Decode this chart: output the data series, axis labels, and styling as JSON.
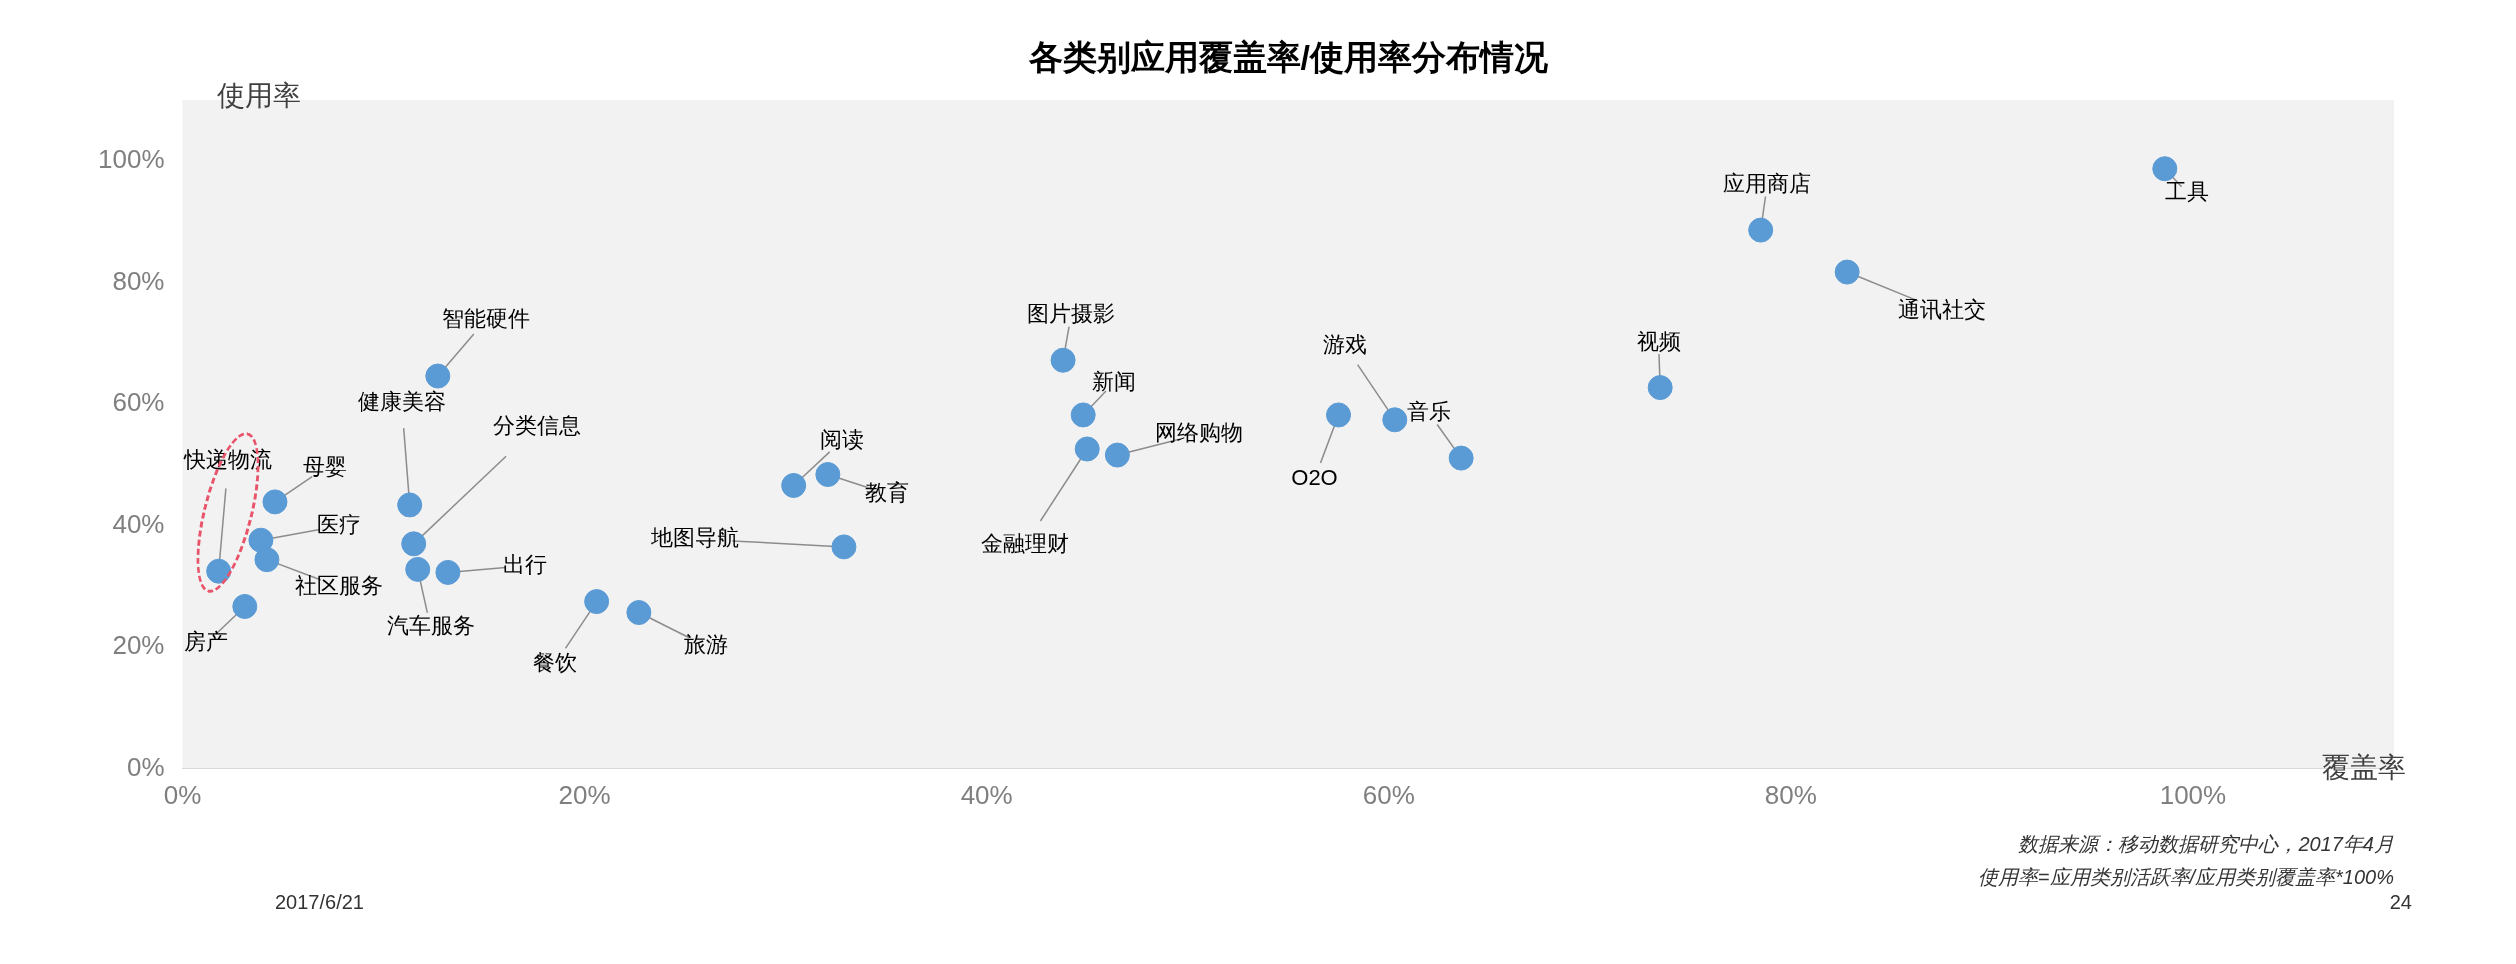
{
  "chart_data": {
    "type": "scatter",
    "title": "各类别应用覆盖率/使用率分布情况",
    "xlabel": "覆盖率",
    "ylabel": "使用率",
    "color": "#5b9bd5",
    "marker": "circle",
    "x": [
      98.6,
      78.5,
      82.8,
      73.5,
      63.6,
      60.3,
      57.5,
      43.8,
      44.8,
      45.0,
      46.5,
      30.4,
      32.1,
      32.9,
      20.6,
      22.7,
      12.7,
      11.3,
      11.5,
      11.7,
      13.2,
      4.6,
      3.9,
      4.2,
      1.8,
      3.1
    ],
    "values": [
      98.7,
      88.6,
      81.7,
      62.7,
      51.1,
      57.4,
      58.2,
      67.2,
      58.2,
      52.6,
      51.6,
      46.6,
      48.4,
      36.5,
      27.5,
      25.7,
      64.6,
      43.4,
      37.0,
      32.8,
      32.3,
      43.9,
      37.6,
      34.4,
      32.5,
      26.7
    ],
    "xlim": [
      0,
      110
    ],
    "ylim": [
      0,
      110
    ],
    "xticks": [
      {
        "value": 0,
        "label": "0%"
      },
      {
        "value": 20,
        "label": "20%"
      },
      {
        "value": 40,
        "label": "40%"
      },
      {
        "value": 60,
        "label": "60%"
      },
      {
        "value": 80,
        "label": "80%"
      },
      {
        "value": 100,
        "label": "100%"
      }
    ],
    "yticks": [
      {
        "value": 0,
        "label": "0%"
      },
      {
        "value": 20,
        "label": "20%"
      },
      {
        "value": 40,
        "label": "40%"
      },
      {
        "value": 60,
        "label": "60%"
      },
      {
        "value": 80,
        "label": "80%"
      },
      {
        "value": 100,
        "label": "100%"
      }
    ],
    "annotations": [
      {
        "text": "工具",
        "x": 98.6,
        "y": 98.7
      },
      {
        "text": "应用商店",
        "x": 78.5,
        "y": 88.6
      },
      {
        "text": "通讯社交",
        "x": 82.8,
        "y": 81.7
      },
      {
        "text": "视频",
        "x": 73.5,
        "y": 62.7
      },
      {
        "text": "音乐",
        "x": 63.6,
        "y": 51.1
      },
      {
        "text": "游戏",
        "x": 60.3,
        "y": 57.4
      },
      {
        "text": "O2O",
        "x": 57.5,
        "y": 58.2
      },
      {
        "text": "图片摄影",
        "x": 43.8,
        "y": 67.2
      },
      {
        "text": "新闻",
        "x": 44.8,
        "y": 58.2
      },
      {
        "text": "金融理财",
        "x": 45.0,
        "y": 52.6
      },
      {
        "text": "网络购物",
        "x": 46.5,
        "y": 51.6
      },
      {
        "text": "阅读",
        "x": 30.4,
        "y": 46.6
      },
      {
        "text": "教育",
        "x": 32.1,
        "y": 48.4
      },
      {
        "text": "地图导航",
        "x": 32.9,
        "y": 36.5
      },
      {
        "text": "餐饮",
        "x": 20.6,
        "y": 27.5
      },
      {
        "text": "旅游",
        "x": 22.7,
        "y": 25.7
      },
      {
        "text": "智能硬件",
        "x": 12.7,
        "y": 64.6
      },
      {
        "text": "健康美容",
        "x": 11.3,
        "y": 43.4
      },
      {
        "text": "分类信息",
        "x": 11.5,
        "y": 37.0
      },
      {
        "text": "汽车服务",
        "x": 11.7,
        "y": 32.8
      },
      {
        "text": "出行",
        "x": 13.2,
        "y": 32.3
      },
      {
        "text": "母婴",
        "x": 4.6,
        "y": 43.9
      },
      {
        "text": "医疗",
        "x": 3.9,
        "y": 37.6
      },
      {
        "text": "社区服务",
        "x": 4.2,
        "y": 34.4
      },
      {
        "text": "快递物流",
        "x": 1.8,
        "y": 32.5
      },
      {
        "text": "房产",
        "x": 3.1,
        "y": 26.7
      },
      "数据来源：移动数据研究中心，2017年4月",
      "使用率=应用类别活跃率/应用类别覆盖率*100%",
      "2017/6/21",
      "24"
    ]
  }
}
